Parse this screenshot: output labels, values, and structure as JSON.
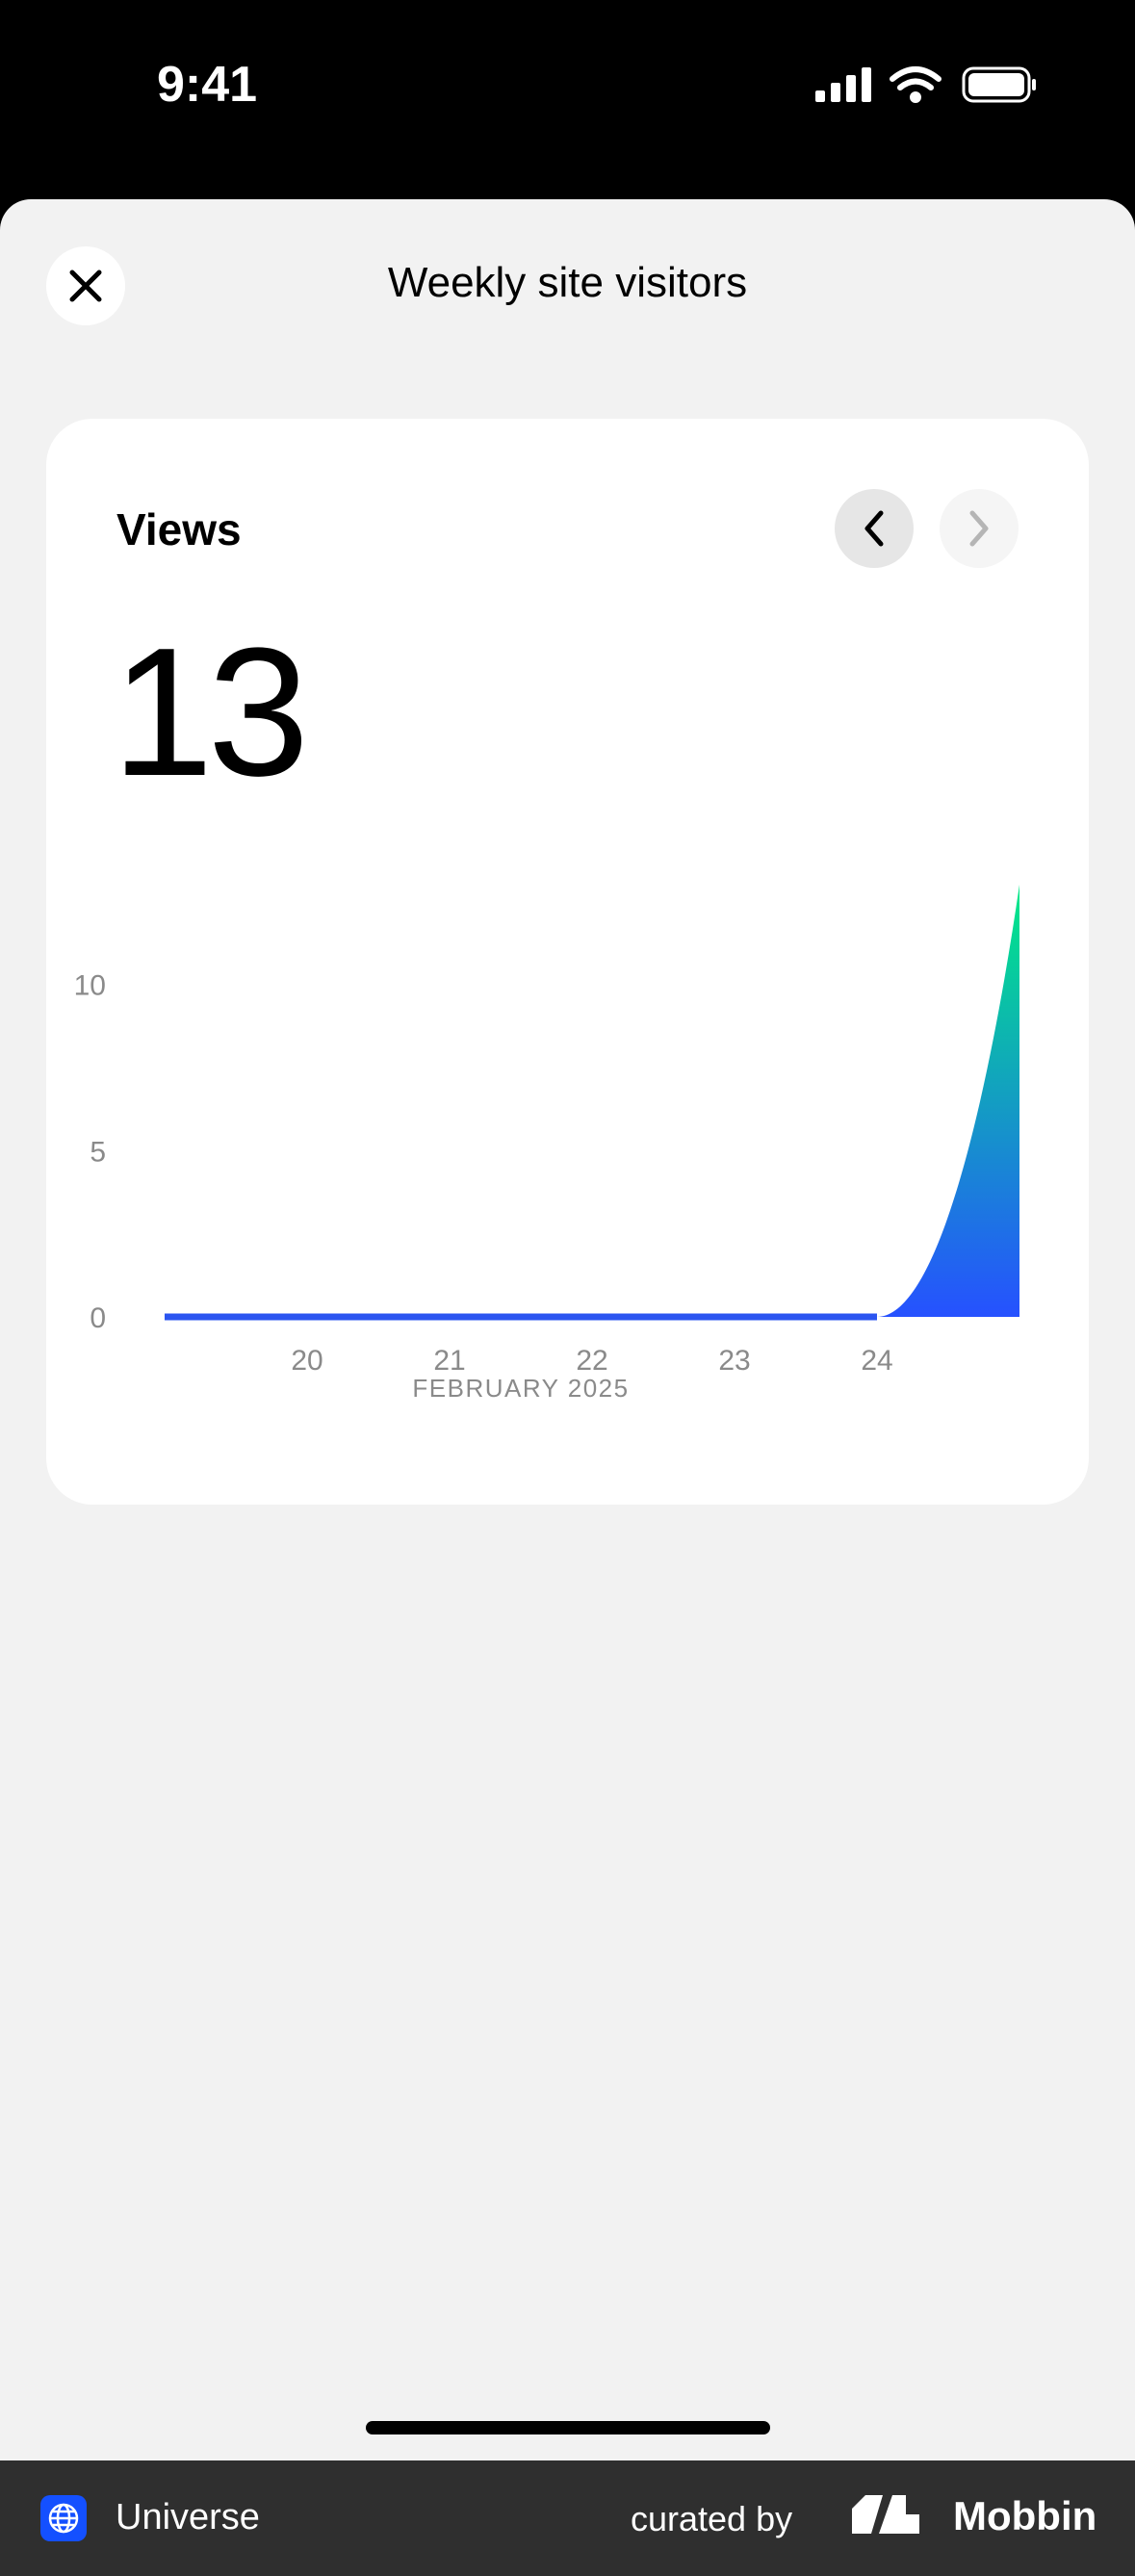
{
  "status_bar": {
    "time": "9:41"
  },
  "header": {
    "title": "Weekly site visitors",
    "close_icon": "close-icon"
  },
  "card": {
    "label": "Views",
    "value": "13",
    "prev_icon": "chevron-left-icon",
    "next_icon": "chevron-right-icon"
  },
  "chart_data": {
    "type": "area",
    "x": [
      19,
      20,
      21,
      22,
      23,
      24,
      25
    ],
    "values": [
      0,
      0,
      0,
      0,
      0,
      0,
      13
    ],
    "xticks": [
      "20",
      "21",
      "22",
      "23",
      "24"
    ],
    "xtick_values": [
      20,
      21,
      22,
      23,
      24
    ],
    "yticks": [
      "0",
      "5",
      "10"
    ],
    "ytick_values": [
      0,
      5,
      10
    ],
    "xlabel": "FEBRUARY 2025",
    "xlim": [
      19,
      25
    ],
    "ylim": [
      0,
      13
    ],
    "grid": false,
    "colors": {
      "line": "#2b55f0",
      "gradient_bottom": "#2651ff",
      "gradient_top": "#00ea86"
    }
  },
  "footer": {
    "app_name": "Universe",
    "curated_by": "curated by",
    "brand": "Mobbin"
  }
}
